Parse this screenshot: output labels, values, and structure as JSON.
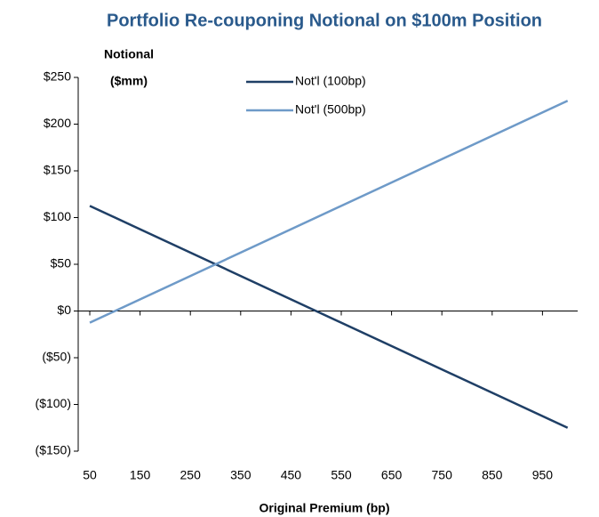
{
  "chart_data": {
    "type": "line",
    "title": "Portfolio Re-couponing Notional on $100m Position",
    "x_label": "Original Premium (bp)",
    "y_label": [
      "Notional",
      "($mm)"
    ],
    "x": [
      50,
      1000
    ],
    "series": [
      {
        "name": "Not'l (100bp)",
        "color": "#1f3f66",
        "values": [
          112.5,
          -125
        ]
      },
      {
        "name": "Not'l (500bp)",
        "color": "#6e9ac8",
        "values": [
          -12.5,
          225
        ]
      }
    ],
    "xlim": [
      27,
      1020
    ],
    "xticks": [
      50,
      150,
      250,
      350,
      450,
      550,
      650,
      750,
      850,
      950
    ],
    "ylim": [
      -150,
      250
    ],
    "yticks": [
      {
        "value": -150,
        "label": "($150)"
      },
      {
        "value": -100,
        "label": "($100)"
      },
      {
        "value": -50,
        "label": "($50)"
      },
      {
        "value": 0,
        "label": "$0"
      },
      {
        "value": 50,
        "label": "$50"
      },
      {
        "value": 100,
        "label": "$100"
      },
      {
        "value": 150,
        "label": "$150"
      },
      {
        "value": 200,
        "label": "$200"
      },
      {
        "value": 250,
        "label": "$250"
      }
    ],
    "grid": false,
    "legend": "top"
  }
}
